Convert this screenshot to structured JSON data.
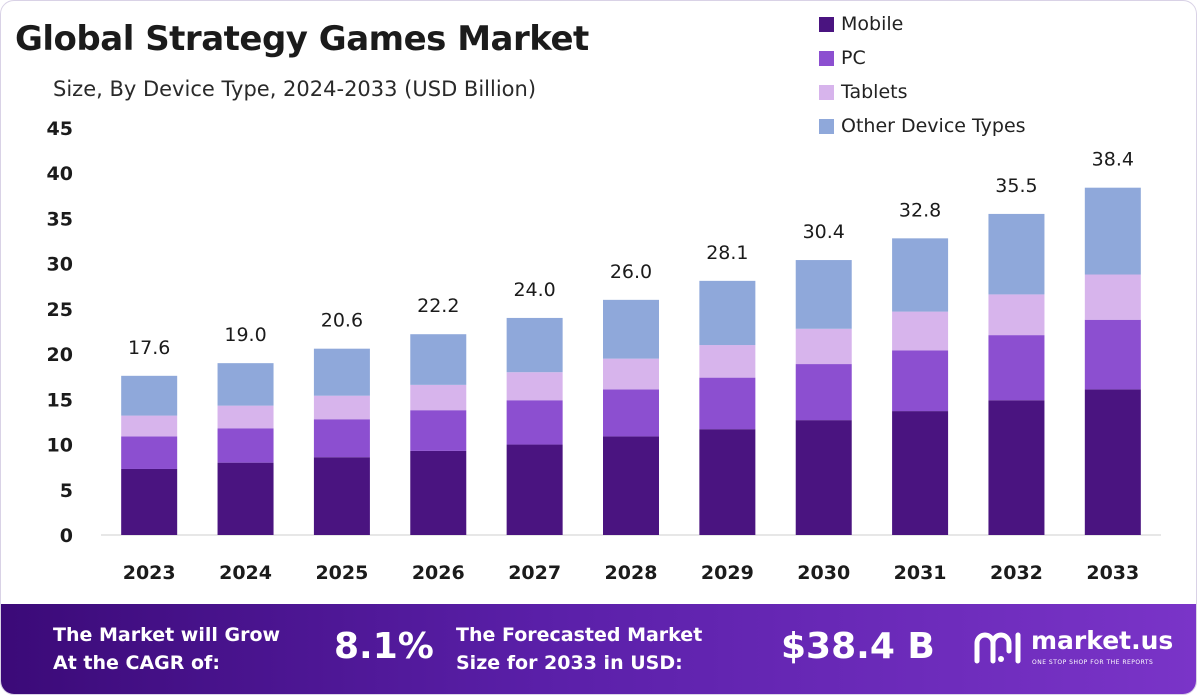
{
  "header": {
    "title": "Global Strategy Games Market",
    "subtitle": "Size, By Device Type, 2024-2033 (USD Billion)"
  },
  "chart_data": {
    "type": "bar",
    "stacked": true,
    "categories": [
      "2023",
      "2024",
      "2025",
      "2026",
      "2027",
      "2028",
      "2029",
      "2030",
      "2031",
      "2032",
      "2033"
    ],
    "series": [
      {
        "name": "Mobile",
        "color": "#4a1480",
        "values": [
          7.3,
          8.0,
          8.6,
          9.3,
          10.0,
          10.9,
          11.7,
          12.7,
          13.7,
          14.9,
          16.1
        ]
      },
      {
        "name": "PC",
        "color": "#8c4fd0",
        "values": [
          3.6,
          3.8,
          4.2,
          4.5,
          4.9,
          5.2,
          5.7,
          6.2,
          6.7,
          7.2,
          7.7
        ]
      },
      {
        "name": "Tablets",
        "color": "#d7b4ec",
        "values": [
          2.3,
          2.5,
          2.6,
          2.8,
          3.1,
          3.4,
          3.6,
          3.9,
          4.3,
          4.5,
          5.0
        ]
      },
      {
        "name": "Other Device Types",
        "color": "#8fa8da",
        "values": [
          4.4,
          4.7,
          5.2,
          5.6,
          6.0,
          6.5,
          7.1,
          7.6,
          8.1,
          8.9,
          9.6
        ]
      }
    ],
    "totals": [
      "17.6",
      "19.0",
      "20.6",
      "22.2",
      "24.0",
      "26.0",
      "28.1",
      "30.4",
      "32.8",
      "35.5",
      "38.4"
    ],
    "ylim": [
      0,
      45
    ],
    "yticks": [
      "0",
      "5",
      "10",
      "15",
      "20",
      "25",
      "30",
      "35",
      "40",
      "45"
    ],
    "xlabel": "",
    "ylabel": "",
    "grid": false,
    "legend_position": "top-right"
  },
  "footer": {
    "cagr_label_line1": "The Market will Grow",
    "cagr_label_line2": "At the CAGR of:",
    "cagr_value": "8.1%",
    "forecast_label_line1": "The Forecasted Market",
    "forecast_label_line2": "Size for 2033 in USD:",
    "forecast_value": "$38.4 B",
    "brand_name": "market.us",
    "brand_tagline": "ONE STOP SHOP FOR THE REPORTS"
  },
  "colors": {
    "footer_gradient_start": "#3b0a78",
    "footer_gradient_end": "#7a34c8"
  },
  "icons": {
    "brand_logo": "market-us-logo-icon"
  }
}
